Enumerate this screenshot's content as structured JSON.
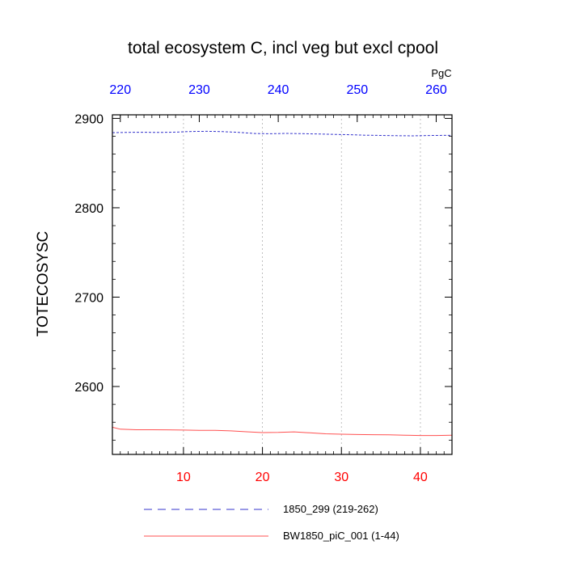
{
  "chart_data": {
    "type": "line",
    "title": "total ecosystem C, incl veg but excl cpool",
    "ylabel": "TOTECOSYSC",
    "units": "PgC",
    "xlim": [
      1,
      44
    ],
    "ylim": [
      2524,
      2904
    ],
    "bottom_axis": {
      "ticks": [
        10,
        20,
        30,
        40
      ],
      "color": "#ff0000"
    },
    "top_axis": {
      "offset": 218,
      "ticks": [
        220,
        230,
        240,
        250,
        260
      ],
      "color": "#0000ff"
    },
    "y_ticks": [
      2600,
      2700,
      2800,
      2900
    ],
    "grid": "vertical dotted",
    "series": [
      {
        "name": "1850_299 (219-262)",
        "color": "#3333cc",
        "dash": "dashed",
        "x": [
          1,
          3,
          5,
          7,
          9,
          11,
          13,
          15,
          17,
          19,
          21,
          23,
          25,
          27,
          29,
          31,
          33,
          35,
          37,
          39,
          41,
          44
        ],
        "values": [
          2884,
          2884.4,
          2884.5,
          2884.3,
          2884.6,
          2885.4,
          2885.5,
          2885.2,
          2884.4,
          2883.1,
          2882.8,
          2883.2,
          2882.9,
          2882.6,
          2882.1,
          2881.7,
          2881.2,
          2880.9,
          2880.7,
          2880.5,
          2880.8,
          2881.1
        ]
      },
      {
        "name": "BW1850_piC_001 (1-44)",
        "color": "#ff5050",
        "dash": "solid",
        "x": [
          1,
          2,
          4,
          6,
          8,
          10,
          12,
          14,
          16,
          18,
          20,
          22,
          24,
          26,
          28,
          30,
          32,
          34,
          36,
          38,
          40,
          42,
          44
        ],
        "values": [
          2554.4,
          2552.2,
          2551.6,
          2551.6,
          2551.5,
          2551.2,
          2550.9,
          2551,
          2550.3,
          2549.3,
          2548.4,
          2548.6,
          2549.2,
          2548.2,
          2547.1,
          2546.6,
          2546.3,
          2546.1,
          2545.9,
          2545.5,
          2545.2,
          2545.2,
          2545.4
        ]
      }
    ]
  }
}
